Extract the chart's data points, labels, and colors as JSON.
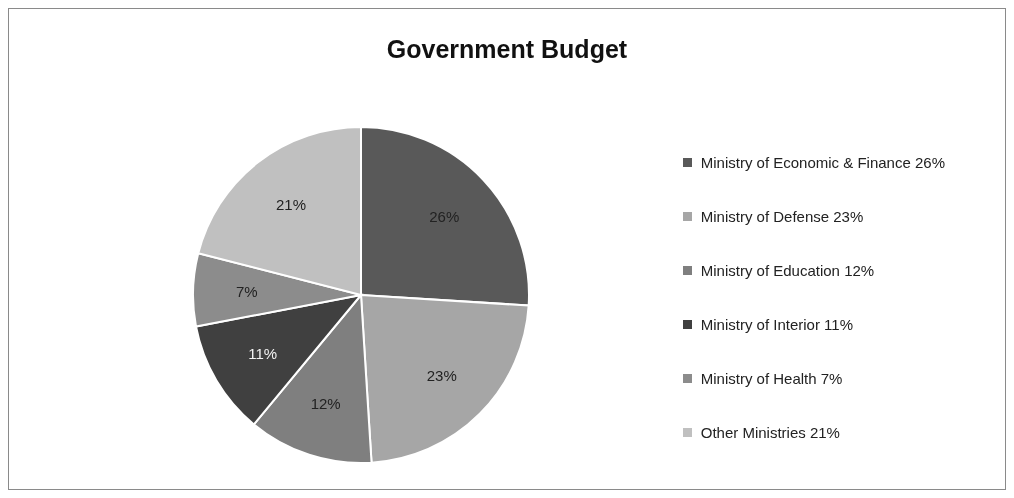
{
  "chart_data": {
    "type": "pie",
    "title": "Government Budget",
    "categories": [
      "Ministry of Economic & Finance 26%",
      "Ministry of Defense 23%",
      "Ministry of Education 12%",
      "Ministry of Interior 11%",
      "Ministry of Health 7%",
      "Other Ministries 21%"
    ],
    "values": [
      26,
      23,
      12,
      11,
      7,
      21
    ],
    "colors": [
      "#595959",
      "#a6a6a6",
      "#7f7f7f",
      "#404040",
      "#8c8c8c",
      "#c0c0c0"
    ],
    "value_labels": [
      "26%",
      "23%",
      "12%",
      "11%",
      "7%",
      "21%"
    ],
    "legend": "right"
  }
}
